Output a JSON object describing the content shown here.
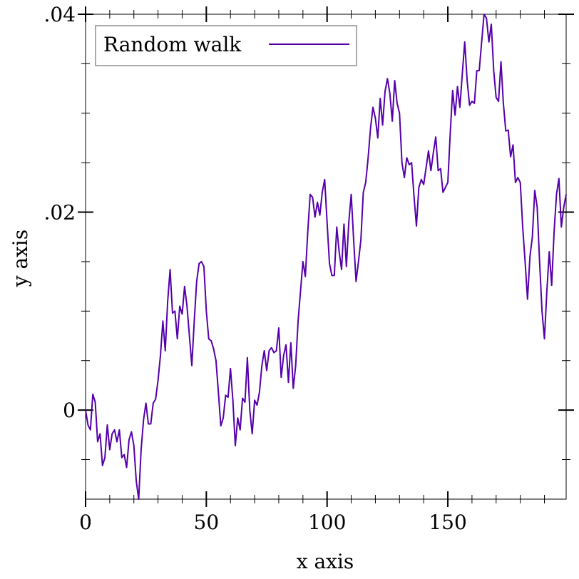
{
  "chart_data": {
    "type": "line",
    "xlabel": "x axis",
    "ylabel": "y axis",
    "xlim": [
      0,
      199
    ],
    "ylim": [
      -0.009,
      0.04
    ],
    "x_ticks": [
      0,
      50,
      100,
      150
    ],
    "x_tick_labels": [
      "0",
      "50",
      "100",
      "150"
    ],
    "x_minor_ticks": [
      10,
      20,
      30,
      40,
      60,
      70,
      80,
      90,
      110,
      120,
      130,
      140,
      160,
      170,
      180,
      190
    ],
    "y_ticks": [
      0,
      0.02,
      0.04
    ],
    "y_tick_labels": [
      "0",
      ".02",
      ".04"
    ],
    "y_minor_ticks": [
      -0.005,
      0.005,
      0.01,
      0.015,
      0.025,
      0.03,
      0.035
    ],
    "legend": {
      "placement": "top-left"
    },
    "grid": false,
    "series": [
      {
        "name": "Random walk",
        "color": "#5500aa",
        "points": [
          [
            0,
            0.0
          ],
          [
            1,
            -0.0015
          ],
          [
            2,
            -0.002
          ],
          [
            3,
            0.0016
          ],
          [
            4,
            0.0008
          ],
          [
            5,
            -0.0032
          ],
          [
            6,
            -0.0024
          ],
          [
            7,
            -0.0056
          ],
          [
            8,
            -0.0048
          ],
          [
            9,
            -0.0015
          ],
          [
            10,
            -0.004
          ],
          [
            11,
            -0.0024
          ],
          [
            12,
            -0.002
          ],
          [
            13,
            -0.0032
          ],
          [
            14,
            -0.002
          ],
          [
            15,
            -0.0048
          ],
          [
            16,
            -0.0045
          ],
          [
            17,
            -0.0058
          ],
          [
            18,
            -0.003
          ],
          [
            19,
            -0.0022
          ],
          [
            20,
            -0.0036
          ],
          [
            21,
            -0.0072
          ],
          [
            22,
            -0.009
          ],
          [
            23,
            -0.004
          ],
          [
            24,
            -0.001
          ],
          [
            25,
            0.0007
          ],
          [
            26,
            -0.0014
          ],
          [
            27,
            -0.0014
          ],
          [
            28,
            0.0007
          ],
          [
            29,
            0.0011
          ],
          [
            30,
            0.003
          ],
          [
            31,
            0.0055
          ],
          [
            32,
            0.009
          ],
          [
            33,
            0.006
          ],
          [
            34,
            0.011
          ],
          [
            35,
            0.0142
          ],
          [
            36,
            0.0098
          ],
          [
            37,
            0.01
          ],
          [
            38,
            0.0072
          ],
          [
            39,
            0.0105
          ],
          [
            40,
            0.0097
          ],
          [
            41,
            0.0125
          ],
          [
            42,
            0.0105
          ],
          [
            43,
            0.0075
          ],
          [
            44,
            0.0045
          ],
          [
            45,
            0.009
          ],
          [
            46,
            0.013
          ],
          [
            47,
            0.0148
          ],
          [
            48,
            0.015
          ],
          [
            49,
            0.0145
          ],
          [
            50,
            0.01
          ],
          [
            51,
            0.0072
          ],
          [
            52,
            0.007
          ],
          [
            53,
            0.0062
          ],
          [
            54,
            0.005
          ],
          [
            55,
            0.0018
          ],
          [
            56,
            -0.0016
          ],
          [
            57,
            -0.0008
          ],
          [
            58,
            0.0015
          ],
          [
            59,
            0.0013
          ],
          [
            60,
            0.0042
          ],
          [
            61,
            0.001
          ],
          [
            62,
            -0.0036
          ],
          [
            63,
            -0.0008
          ],
          [
            64,
            -0.002
          ],
          [
            65,
            0.0012
          ],
          [
            66,
            0.0008
          ],
          [
            67,
            0.0053
          ],
          [
            68,
            0.0
          ],
          [
            69,
            -0.0024
          ],
          [
            70,
            0.001
          ],
          [
            71,
            0.0005
          ],
          [
            72,
            0.0018
          ],
          [
            73,
            0.0045
          ],
          [
            74,
            0.006
          ],
          [
            75,
            0.004
          ],
          [
            76,
            0.006
          ],
          [
            77,
            0.0063
          ],
          [
            78,
            0.0058
          ],
          [
            79,
            0.006
          ],
          [
            80,
            0.0083
          ],
          [
            81,
            0.0033
          ],
          [
            82,
            0.0055
          ],
          [
            83,
            0.0066
          ],
          [
            84,
            0.0028
          ],
          [
            85,
            0.0068
          ],
          [
            86,
            0.0022
          ],
          [
            87,
            0.0045
          ],
          [
            88,
            0.009
          ],
          [
            89,
            0.012
          ],
          [
            90,
            0.015
          ],
          [
            91,
            0.0135
          ],
          [
            92,
            0.018
          ],
          [
            93,
            0.0218
          ],
          [
            94,
            0.0215
          ],
          [
            95,
            0.0195
          ],
          [
            96,
            0.021
          ],
          [
            97,
            0.0197
          ],
          [
            98,
            0.022
          ],
          [
            99,
            0.0233
          ],
          [
            100,
            0.019
          ],
          [
            101,
            0.0148
          ],
          [
            102,
            0.0136
          ],
          [
            103,
            0.0136
          ],
          [
            104,
            0.0185
          ],
          [
            105,
            0.016
          ],
          [
            106,
            0.0142
          ],
          [
            107,
            0.0188
          ],
          [
            108,
            0.0145
          ],
          [
            109,
            0.019
          ],
          [
            110,
            0.0218
          ],
          [
            111,
            0.0172
          ],
          [
            112,
            0.013
          ],
          [
            113,
            0.015
          ],
          [
            114,
            0.0172
          ],
          [
            115,
            0.022
          ],
          [
            116,
            0.023
          ],
          [
            117,
            0.0255
          ],
          [
            118,
            0.0285
          ],
          [
            119,
            0.0306
          ],
          [
            120,
            0.0295
          ],
          [
            121,
            0.0275
          ],
          [
            122,
            0.0315
          ],
          [
            123,
            0.0288
          ],
          [
            124,
            0.0322
          ],
          [
            125,
            0.0335
          ],
          [
            126,
            0.032
          ],
          [
            127,
            0.0292
          ],
          [
            128,
            0.0333
          ],
          [
            129,
            0.031
          ],
          [
            130,
            0.03
          ],
          [
            131,
            0.025
          ],
          [
            132,
            0.0235
          ],
          [
            133,
            0.0255
          ],
          [
            134,
            0.0248
          ],
          [
            135,
            0.025
          ],
          [
            136,
            0.0216
          ],
          [
            137,
            0.0186
          ],
          [
            138,
            0.0225
          ],
          [
            139,
            0.0233
          ],
          [
            140,
            0.0228
          ],
          [
            141,
            0.0245
          ],
          [
            142,
            0.0262
          ],
          [
            143,
            0.0242
          ],
          [
            144,
            0.026
          ],
          [
            145,
            0.0276
          ],
          [
            146,
            0.0242
          ],
          [
            147,
            0.0244
          ],
          [
            148,
            0.022
          ],
          [
            149,
            0.0225
          ],
          [
            150,
            0.023
          ],
          [
            151,
            0.028
          ],
          [
            152,
            0.0323
          ],
          [
            153,
            0.0298
          ],
          [
            154,
            0.0327
          ],
          [
            155,
            0.0306
          ],
          [
            156,
            0.034
          ],
          [
            157,
            0.0372
          ],
          [
            158,
            0.0333
          ],
          [
            159,
            0.0308
          ],
          [
            160,
            0.0312
          ],
          [
            161,
            0.031
          ],
          [
            162,
            0.0343
          ],
          [
            163,
            0.0343
          ],
          [
            164,
            0.0372
          ],
          [
            165,
            0.04
          ],
          [
            166,
            0.0396
          ],
          [
            167,
            0.0372
          ],
          [
            168,
            0.039
          ],
          [
            169,
            0.0343
          ],
          [
            170,
            0.0316
          ],
          [
            171,
            0.0312
          ],
          [
            172,
            0.0352
          ],
          [
            173,
            0.031
          ],
          [
            174,
            0.0282
          ],
          [
            175,
            0.0283
          ],
          [
            176,
            0.0256
          ],
          [
            177,
            0.0268
          ],
          [
            178,
            0.023
          ],
          [
            179,
            0.0235
          ],
          [
            180,
            0.023
          ],
          [
            181,
            0.0185
          ],
          [
            182,
            0.015
          ],
          [
            183,
            0.0112
          ],
          [
            184,
            0.0155
          ],
          [
            185,
            0.0175
          ],
          [
            186,
            0.0222
          ],
          [
            187,
            0.0205
          ],
          [
            188,
            0.015
          ],
          [
            189,
            0.01
          ],
          [
            190,
            0.0072
          ],
          [
            191,
            0.012
          ],
          [
            192,
            0.016
          ],
          [
            193,
            0.0126
          ],
          [
            194,
            0.018
          ],
          [
            195,
            0.0218
          ],
          [
            196,
            0.0234
          ],
          [
            197,
            0.0185
          ],
          [
            198,
            0.0205
          ],
          [
            199,
            0.0218
          ]
        ]
      }
    ]
  }
}
